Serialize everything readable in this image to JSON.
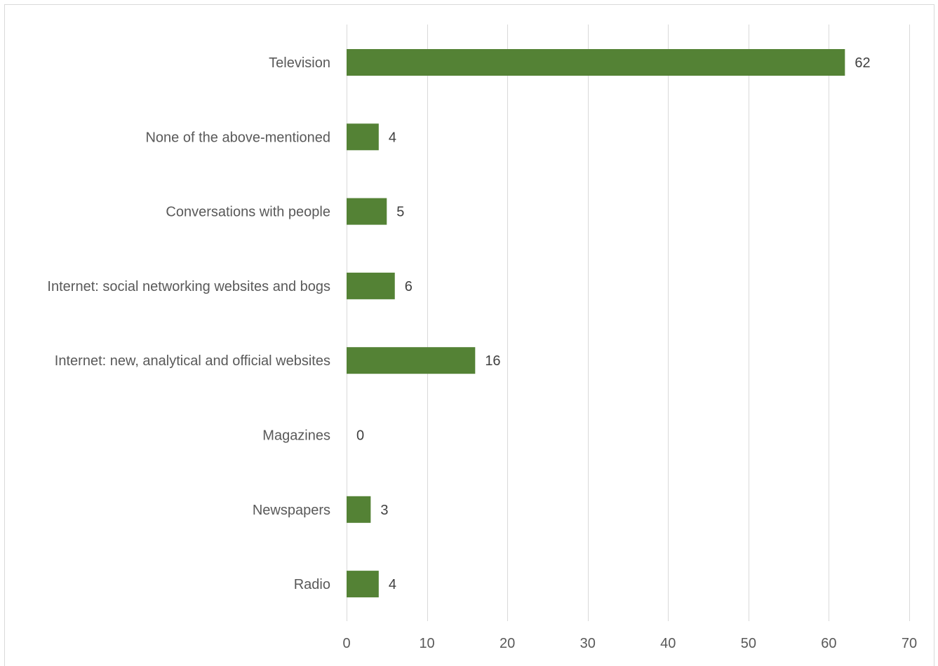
{
  "chart_data": {
    "type": "bar",
    "orientation": "horizontal",
    "categories": [
      "Television",
      "None of the above-mentioned",
      "Conversations with people",
      "Internet: social networking websites and bogs",
      "Internet: new, analytical and official websites",
      "Magazines",
      "Newspapers",
      "Radio"
    ],
    "values": [
      62,
      4,
      5,
      6,
      16,
      0,
      3,
      4
    ],
    "data_labels": [
      "62",
      "4",
      "5",
      "6",
      "16",
      "0",
      "3",
      "4"
    ],
    "xlim": [
      0,
      70
    ],
    "x_ticks": [
      0,
      10,
      20,
      30,
      40,
      50,
      60,
      70
    ],
    "title": "",
    "xlabel": "",
    "ylabel": "",
    "grid": "vertical",
    "legend": "none",
    "bar_color": "#548235"
  }
}
